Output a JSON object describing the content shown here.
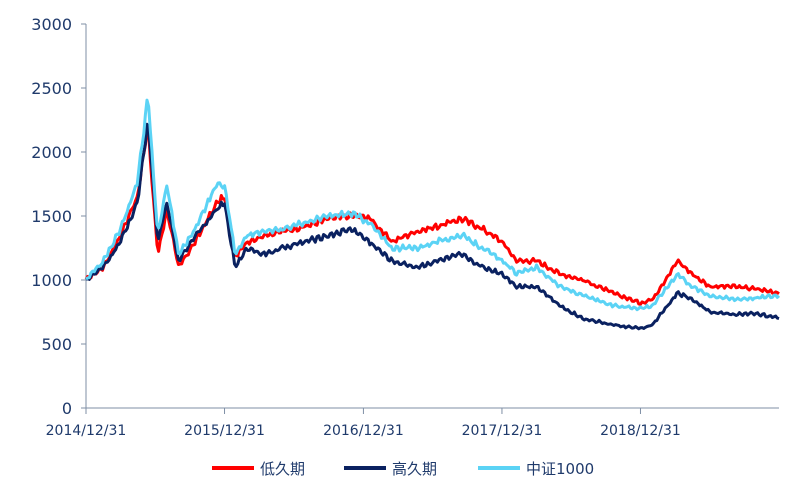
{
  "chart_data": {
    "type": "line",
    "title": "",
    "xlabel": "",
    "ylabel": "",
    "ylim": [
      0,
      3000
    ],
    "yticks": [
      "0",
      "500",
      "1000",
      "1500",
      "2000",
      "2500",
      "3000"
    ],
    "xticks": [
      "2014/12/31",
      "2015/12/31",
      "2016/12/31",
      "2017/12/31",
      "2018/12/31"
    ],
    "x_range": [
      "2014-12-31",
      "2019-12-31"
    ],
    "grid": false,
    "legend_position": "bottom",
    "x": [
      "2014-12-31",
      "2015-02-15",
      "2015-04-01",
      "2015-05-15",
      "2015-06-12",
      "2015-07-08",
      "2015-08-01",
      "2015-09-01",
      "2015-10-15",
      "2015-12-10",
      "2015-12-31",
      "2016-01-28",
      "2016-03-01",
      "2016-04-15",
      "2016-06-01",
      "2016-08-01",
      "2016-10-01",
      "2016-12-01",
      "2017-01-15",
      "2017-03-15",
      "2017-05-20",
      "2017-07-15",
      "2017-09-15",
      "2017-11-10",
      "2017-12-31",
      "2018-02-08",
      "2018-04-01",
      "2018-06-01",
      "2018-08-01",
      "2018-10-18",
      "2018-12-31",
      "2019-02-01",
      "2019-04-08",
      "2019-05-15",
      "2019-07-01",
      "2019-09-01",
      "2019-11-01",
      "2019-12-31"
    ],
    "series": [
      {
        "name": "低久期",
        "color": "#ff0000",
        "values": [
          1000,
          1100,
          1350,
          1650,
          2200,
          1200,
          1550,
          1100,
          1300,
          1600,
          1650,
          1180,
          1300,
          1350,
          1380,
          1420,
          1480,
          1500,
          1490,
          1300,
          1380,
          1420,
          1480,
          1400,
          1300,
          1150,
          1150,
          1050,
          1000,
          900,
          820,
          850,
          1150,
          1050,
          950,
          950,
          930,
          900
        ]
      },
      {
        "name": "高久期",
        "color": "#0a2160",
        "values": [
          1000,
          1100,
          1300,
          1600,
          2250,
          1300,
          1600,
          1150,
          1350,
          1550,
          1600,
          1100,
          1250,
          1200,
          1250,
          1300,
          1350,
          1400,
          1300,
          1150,
          1100,
          1150,
          1200,
          1100,
          1050,
          950,
          950,
          800,
          700,
          650,
          620,
          650,
          900,
          850,
          750,
          730,
          740,
          700
        ]
      },
      {
        "name": "中证1000",
        "color": "#5bd3f5",
        "values": [
          1000,
          1150,
          1400,
          1750,
          2450,
          1350,
          1750,
          1200,
          1400,
          1750,
          1750,
          1200,
          1350,
          1380,
          1400,
          1450,
          1500,
          1520,
          1450,
          1250,
          1250,
          1300,
          1350,
          1250,
          1150,
          1050,
          1100,
          950,
          880,
          800,
          780,
          800,
          1050,
          950,
          880,
          850,
          860,
          880
        ]
      }
    ]
  }
}
